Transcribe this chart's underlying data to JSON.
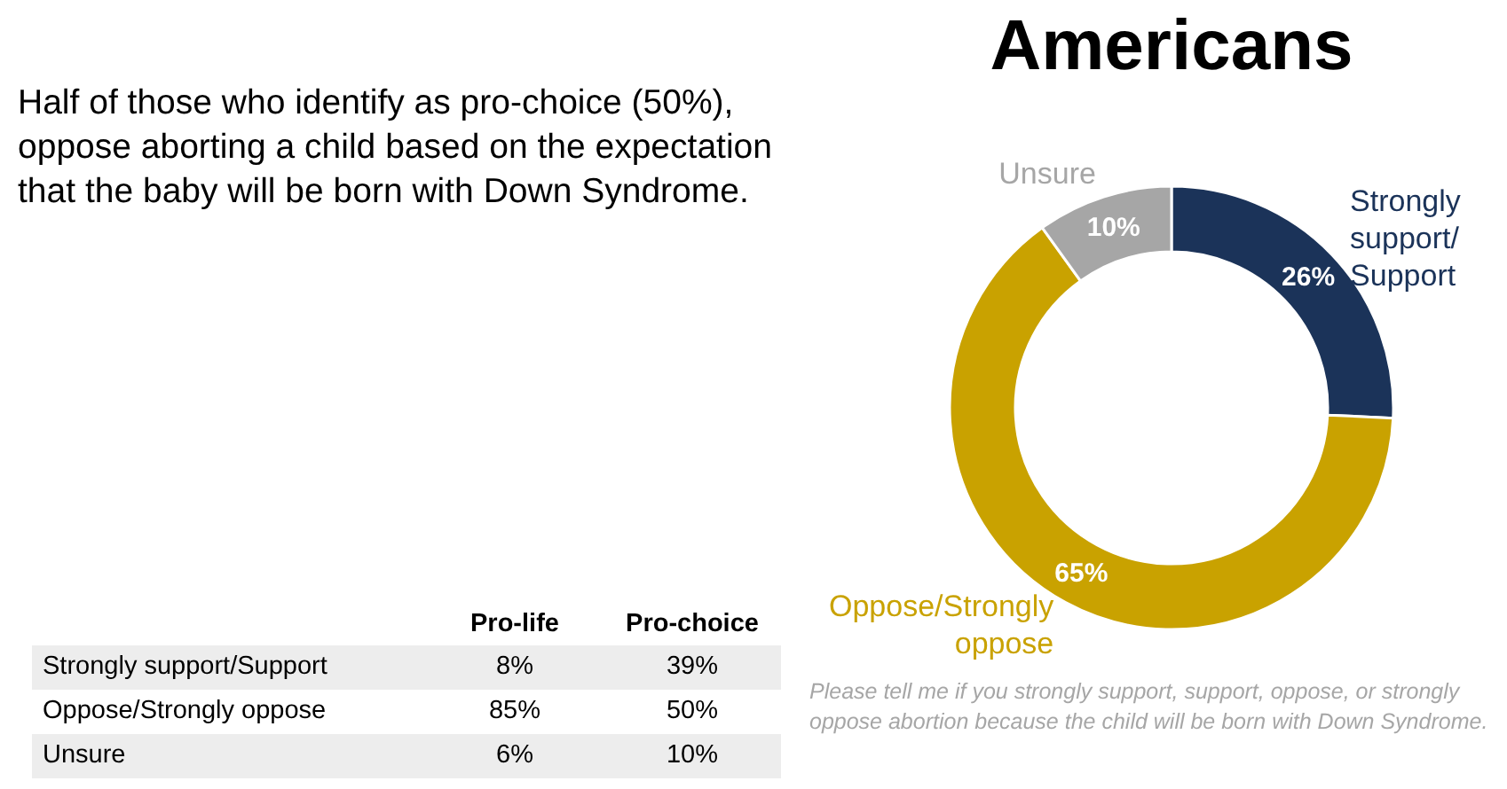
{
  "chart_data": [
    {
      "type": "donut",
      "title": "Americans",
      "subtitle": "Half of those who identify as pro-choice (50%), oppose aborting a child based on the expectation that the baby will be born with Down Syndrome.",
      "categories": [
        "Strongly support/ Support",
        "Oppose/Strongly oppose",
        "Unsure"
      ],
      "values": [
        26,
        65,
        10
      ],
      "value_labels": [
        "26%",
        "65%",
        "10%"
      ],
      "colors": [
        "#1b3359",
        "#c9a200",
        "#a6a6a6"
      ],
      "annotations": [
        "Please tell me if you strongly support, support, oppose, or strongly oppose abortion because the child will be born with Down Syndrome."
      ]
    },
    {
      "type": "other",
      "categories": [
        "Strongly support/Support",
        "Oppose/Strongly oppose",
        "Unsure"
      ],
      "series": [
        {
          "name": "Pro-life",
          "values": [
            8,
            85,
            6
          ],
          "value_labels": [
            "8%",
            "85%",
            "6%"
          ]
        },
        {
          "name": "Pro-choice",
          "values": [
            39,
            50,
            10
          ],
          "value_labels": [
            "39%",
            "50%",
            "10%"
          ]
        }
      ]
    }
  ]
}
